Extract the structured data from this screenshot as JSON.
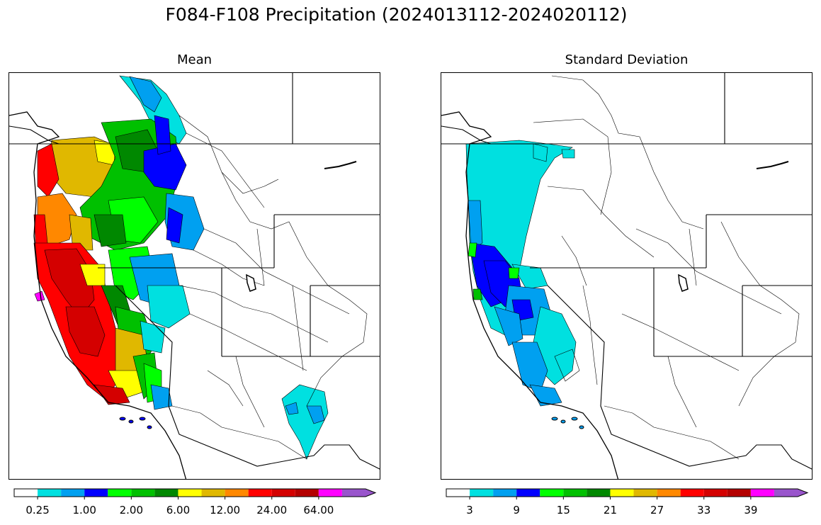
{
  "title": "F084-F108 Precipitation (2024013112-2024020112)",
  "panels": [
    {
      "id": "mean",
      "title": "Mean",
      "colorbar": {
        "colors": [
          "#ffffff",
          "#00e0e0",
          "#00a0f0",
          "#0000ff",
          "#00ff00",
          "#00c000",
          "#008800",
          "#ffff00",
          "#e0b800",
          "#ff8800",
          "#ff0000",
          "#d40000",
          "#b40000",
          "#ff00ff",
          "#9955cc"
        ],
        "tick_labels": [
          "0.25",
          "1.00",
          "2.00",
          "6.00",
          "12.00",
          "24.00",
          "64.00"
        ],
        "extend": "max"
      }
    },
    {
      "id": "stddev",
      "title": "Standard Deviation",
      "colorbar": {
        "colors": [
          "#ffffff",
          "#00e0e0",
          "#00a0f0",
          "#0000ff",
          "#00ff00",
          "#00c000",
          "#008800",
          "#ffff00",
          "#e0b800",
          "#ff8800",
          "#ff0000",
          "#d40000",
          "#b40000",
          "#ff00ff",
          "#9955cc"
        ],
        "tick_labels": [
          "3",
          "9",
          "15",
          "21",
          "27",
          "33",
          "39"
        ],
        "extend": "max"
      }
    }
  ]
}
